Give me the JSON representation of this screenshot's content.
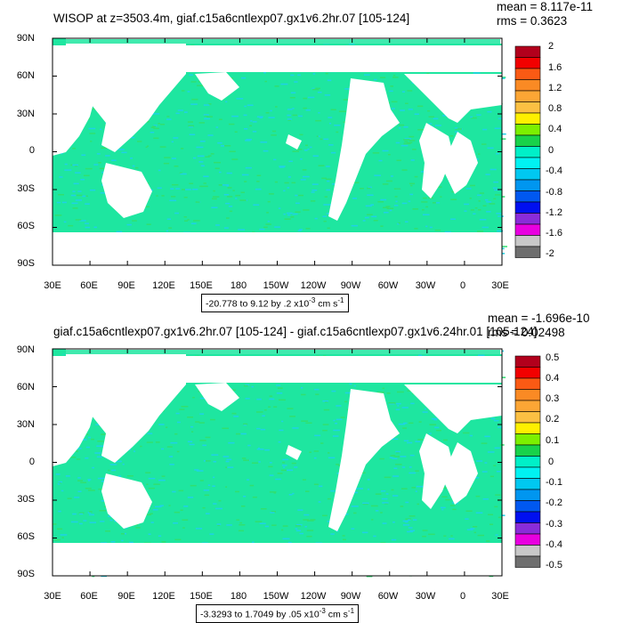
{
  "chart_data": [
    {
      "type": "heatmap",
      "title": "WISOP at z=3503.4m, giaf.c15a6cntlexp07.gx1v6.2hr.07 [105-124]",
      "stats": {
        "mean": "mean = 8.117e-11",
        "rms": "rms = 0.3623"
      },
      "x_ticks": [
        "30E",
        "60E",
        "90E",
        "120E",
        "150E",
        "180",
        "150W",
        "120W",
        "90W",
        "60W",
        "30W",
        "0",
        "30E"
      ],
      "y_ticks": [
        "90N",
        "60N",
        "30N",
        "0",
        "30S",
        "60S",
        "90S"
      ],
      "range_label": {
        "text": "-20.778 to 9.12 by .2 x10",
        "exp": "-3",
        "units": " cm s",
        "uexp": "-1"
      },
      "colorbar_labels": [
        "2",
        "1.6",
        "1.2",
        "0.8",
        "0.4",
        "0",
        "-0.4",
        "-0.8",
        "-1.2",
        "-1.6",
        "-2"
      ]
    },
    {
      "type": "heatmap",
      "title": "giaf.c15a6cntlexp07.gx1v6.2hr.07 [105-124] - giaf.c15a6cntlexp07.gx1v6.24hr.01 [105-124]",
      "stats": {
        "mean": "mean = -1.696e-10",
        "rms": "rms = 0.02498"
      },
      "x_ticks": [
        "30E",
        "60E",
        "90E",
        "120E",
        "150E",
        "180",
        "150W",
        "120W",
        "90W",
        "60W",
        "30W",
        "0",
        "30E"
      ],
      "y_ticks": [
        "90N",
        "60N",
        "30N",
        "0",
        "30S",
        "60S",
        "90S"
      ],
      "range_label": {
        "text": "-3.3293 to 1.7049 by .05 x10",
        "exp": "-3",
        "units": " cm s",
        "uexp": "-1"
      },
      "colorbar_labels": [
        "0.5",
        "0.4",
        "0.3",
        "0.2",
        "0.1",
        "0",
        "-0.1",
        "-0.2",
        "-0.3",
        "-0.4",
        "-0.5"
      ]
    }
  ],
  "colors": {
    "colorbar": [
      "#b2001c",
      "#f20000",
      "#fa5a14",
      "#fa8a24",
      "#fca635",
      "#fbc043",
      "#fef000",
      "#7cf000",
      "#18d24a",
      "#00f0c8",
      "#00f2f2",
      "#00c8f0",
      "#0096f0",
      "#0058f0",
      "#0010f0",
      "#8a2cd9",
      "#e800e0",
      "#c8c8c8",
      "#6e6e6e"
    ],
    "ocean_main": "#1ee6a0",
    "ocean_alt": "#1ed2e6"
  }
}
